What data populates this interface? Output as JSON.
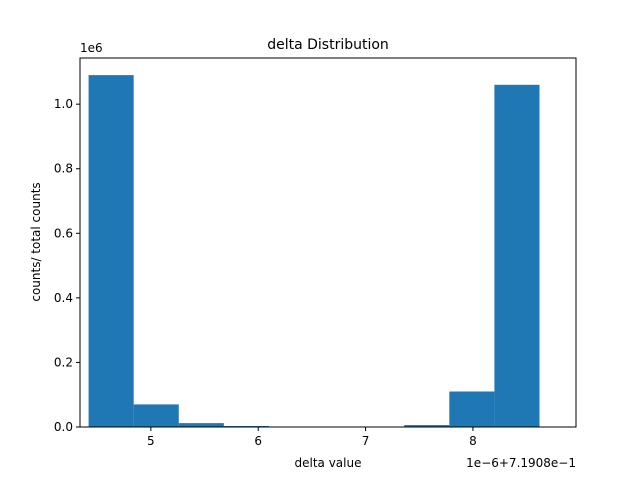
{
  "chart_data": {
    "type": "bar",
    "title": "delta Distribution",
    "xlabel": "delta value",
    "ylabel": "counts/ total counts",
    "x_offset_label": "1e−6+7.1908e−1",
    "y_multiplier_label": "1e6",
    "x_ticks": [
      5,
      6,
      7,
      8
    ],
    "x_tick_labels": [
      "5",
      "6",
      "7",
      "8"
    ],
    "y_ticks": [
      0.0,
      0.2,
      0.4,
      0.6,
      0.8,
      1.0
    ],
    "y_tick_labels": [
      "0.0",
      "0.2",
      "0.4",
      "0.6",
      "0.8",
      "1.0"
    ],
    "xlim": [
      4.34,
      8.96
    ],
    "ylim": [
      0,
      1.143
    ],
    "bins": [
      {
        "start": 4.42,
        "end": 4.84,
        "value": 1.09
      },
      {
        "start": 4.84,
        "end": 5.26,
        "value": 0.07
      },
      {
        "start": 5.26,
        "end": 5.68,
        "value": 0.012
      },
      {
        "start": 5.68,
        "end": 6.1,
        "value": 0.003
      },
      {
        "start": 6.1,
        "end": 6.52,
        "value": 0.0
      },
      {
        "start": 6.52,
        "end": 6.94,
        "value": 0.0
      },
      {
        "start": 6.94,
        "end": 7.36,
        "value": 0.0
      },
      {
        "start": 7.36,
        "end": 7.78,
        "value": 0.006
      },
      {
        "start": 7.78,
        "end": 8.2,
        "value": 0.11
      },
      {
        "start": 8.2,
        "end": 8.62,
        "value": 1.06
      }
    ],
    "bar_color": "#1f77b4",
    "grid": false,
    "legend": "none"
  }
}
